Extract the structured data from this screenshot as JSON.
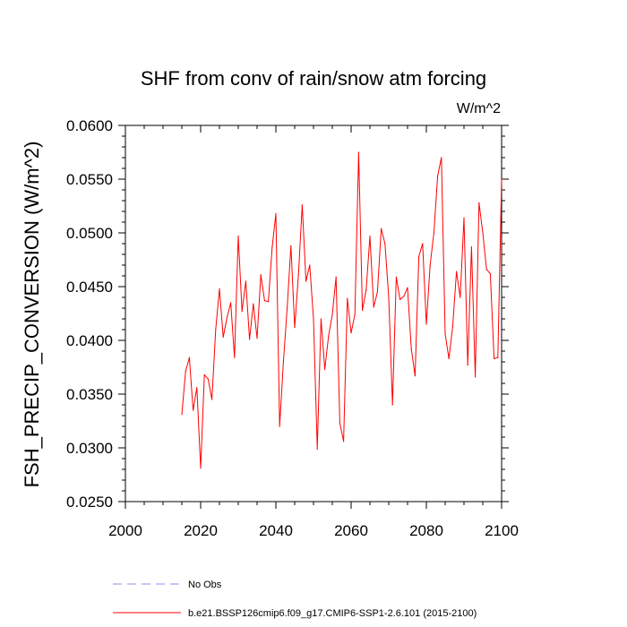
{
  "chart_data": {
    "type": "line",
    "title": "SHF from conv of rain/snow atm forcing",
    "units": "W/m^2",
    "ylabel": "FSH_PRECIP_CONVERSION  (W/m^2)",
    "xlabel": "",
    "xlim": [
      2000,
      2100
    ],
    "ylim": [
      0.025,
      0.06
    ],
    "x_ticks": [
      2000,
      2020,
      2040,
      2060,
      2080,
      2100
    ],
    "x_tick_labels": [
      "2000",
      "2020",
      "2040",
      "2060",
      "2080",
      "2100"
    ],
    "y_ticks": [
      0.025,
      0.03,
      0.035,
      0.04,
      0.045,
      0.05,
      0.055,
      0.06
    ],
    "y_tick_labels": [
      "0.0250",
      "0.0300",
      "0.0350",
      "0.0400",
      "0.0450",
      "0.0500",
      "0.0550",
      "0.0600"
    ],
    "grid": false,
    "legend": [
      {
        "label": "No Obs",
        "color": "#8c8ce6",
        "style": "dashed"
      },
      {
        "label": "b.e21.BSSP126cmip6.f09_g17.CMIP6-SSP1-2.6.101 (2015-2100)",
        "color": "#ff0000",
        "style": "solid"
      }
    ],
    "series": [
      {
        "name": "b.e21.BSSP126cmip6.f09_g17.CMIP6-SSP1-2.6.101 (2015-2100)",
        "color": "#ff0000",
        "x": [
          2015,
          2016,
          2017,
          2018,
          2019,
          2020,
          2021,
          2022,
          2023,
          2024,
          2025,
          2026,
          2027,
          2028,
          2029,
          2030,
          2031,
          2032,
          2033,
          2034,
          2035,
          2036,
          2037,
          2038,
          2039,
          2040,
          2041,
          2042,
          2043,
          2044,
          2045,
          2046,
          2047,
          2048,
          2049,
          2050,
          2051,
          2052,
          2053,
          2054,
          2055,
          2056,
          2057,
          2058,
          2059,
          2060,
          2061,
          2062,
          2063,
          2064,
          2065,
          2066,
          2067,
          2068,
          2069,
          2070,
          2071,
          2072,
          2073,
          2074,
          2075,
          2076,
          2077,
          2078,
          2079,
          2080,
          2081,
          2082,
          2083,
          2084,
          2085,
          2086,
          2087,
          2088,
          2089,
          2090,
          2091,
          2092,
          2093,
          2094,
          2095,
          2096,
          2097,
          2098,
          2099,
          2100
        ],
        "values": [
          0.0331,
          0.0371,
          0.0384,
          0.0335,
          0.0356,
          0.0281,
          0.0368,
          0.0364,
          0.0345,
          0.041,
          0.0448,
          0.0403,
          0.0421,
          0.0435,
          0.0384,
          0.0497,
          0.0427,
          0.0455,
          0.0401,
          0.0434,
          0.0402,
          0.0461,
          0.0437,
          0.0436,
          0.0486,
          0.0518,
          0.032,
          0.038,
          0.043,
          0.0488,
          0.0412,
          0.0461,
          0.0526,
          0.0455,
          0.047,
          0.042,
          0.0299,
          0.042,
          0.0373,
          0.0404,
          0.0424,
          0.0459,
          0.0323,
          0.0306,
          0.0439,
          0.0407,
          0.0424,
          0.0575,
          0.0428,
          0.0447,
          0.0497,
          0.0431,
          0.0445,
          0.0504,
          0.049,
          0.044,
          0.034,
          0.0459,
          0.0438,
          0.0441,
          0.0449,
          0.0392,
          0.0367,
          0.0478,
          0.049,
          0.0415,
          0.047,
          0.05,
          0.0553,
          0.057,
          0.0406,
          0.0383,
          0.0413,
          0.0464,
          0.044,
          0.0514,
          0.0377,
          0.0487,
          0.0366,
          0.0528,
          0.05,
          0.0466,
          0.0462,
          0.0383,
          0.0384,
          0.055
        ]
      }
    ]
  }
}
